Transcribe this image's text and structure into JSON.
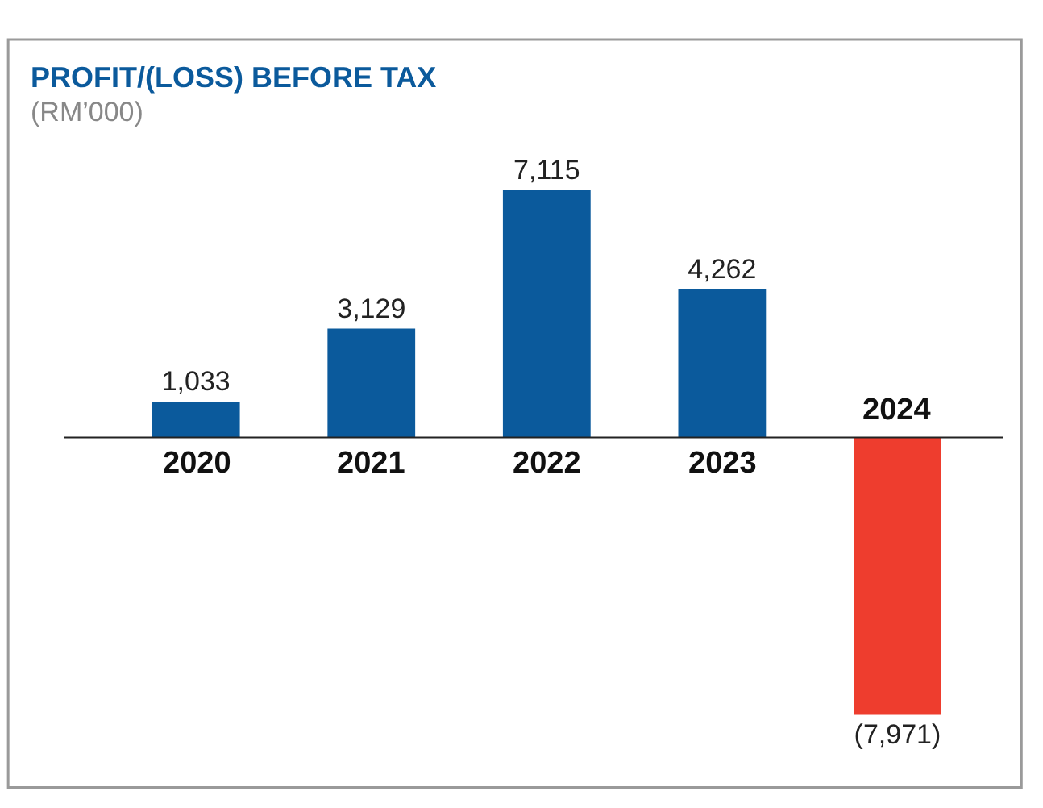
{
  "chart_data": {
    "type": "bar",
    "title": "PROFIT/(LOSS) BEFORE TAX",
    "subtitle": "(RM’000)",
    "categories": [
      "2020",
      "2021",
      "2022",
      "2023",
      "2024"
    ],
    "values": [
      1033,
      3129,
      7115,
      4262,
      -7971
    ],
    "colors": [
      "#0b5a9c",
      "#0b5a9c",
      "#0b5a9c",
      "#0b5a9c",
      "#ee3d2e"
    ],
    "value_labels": [
      "1,033",
      "3,129",
      "7,115",
      "4,262",
      "(7,971)"
    ]
  }
}
